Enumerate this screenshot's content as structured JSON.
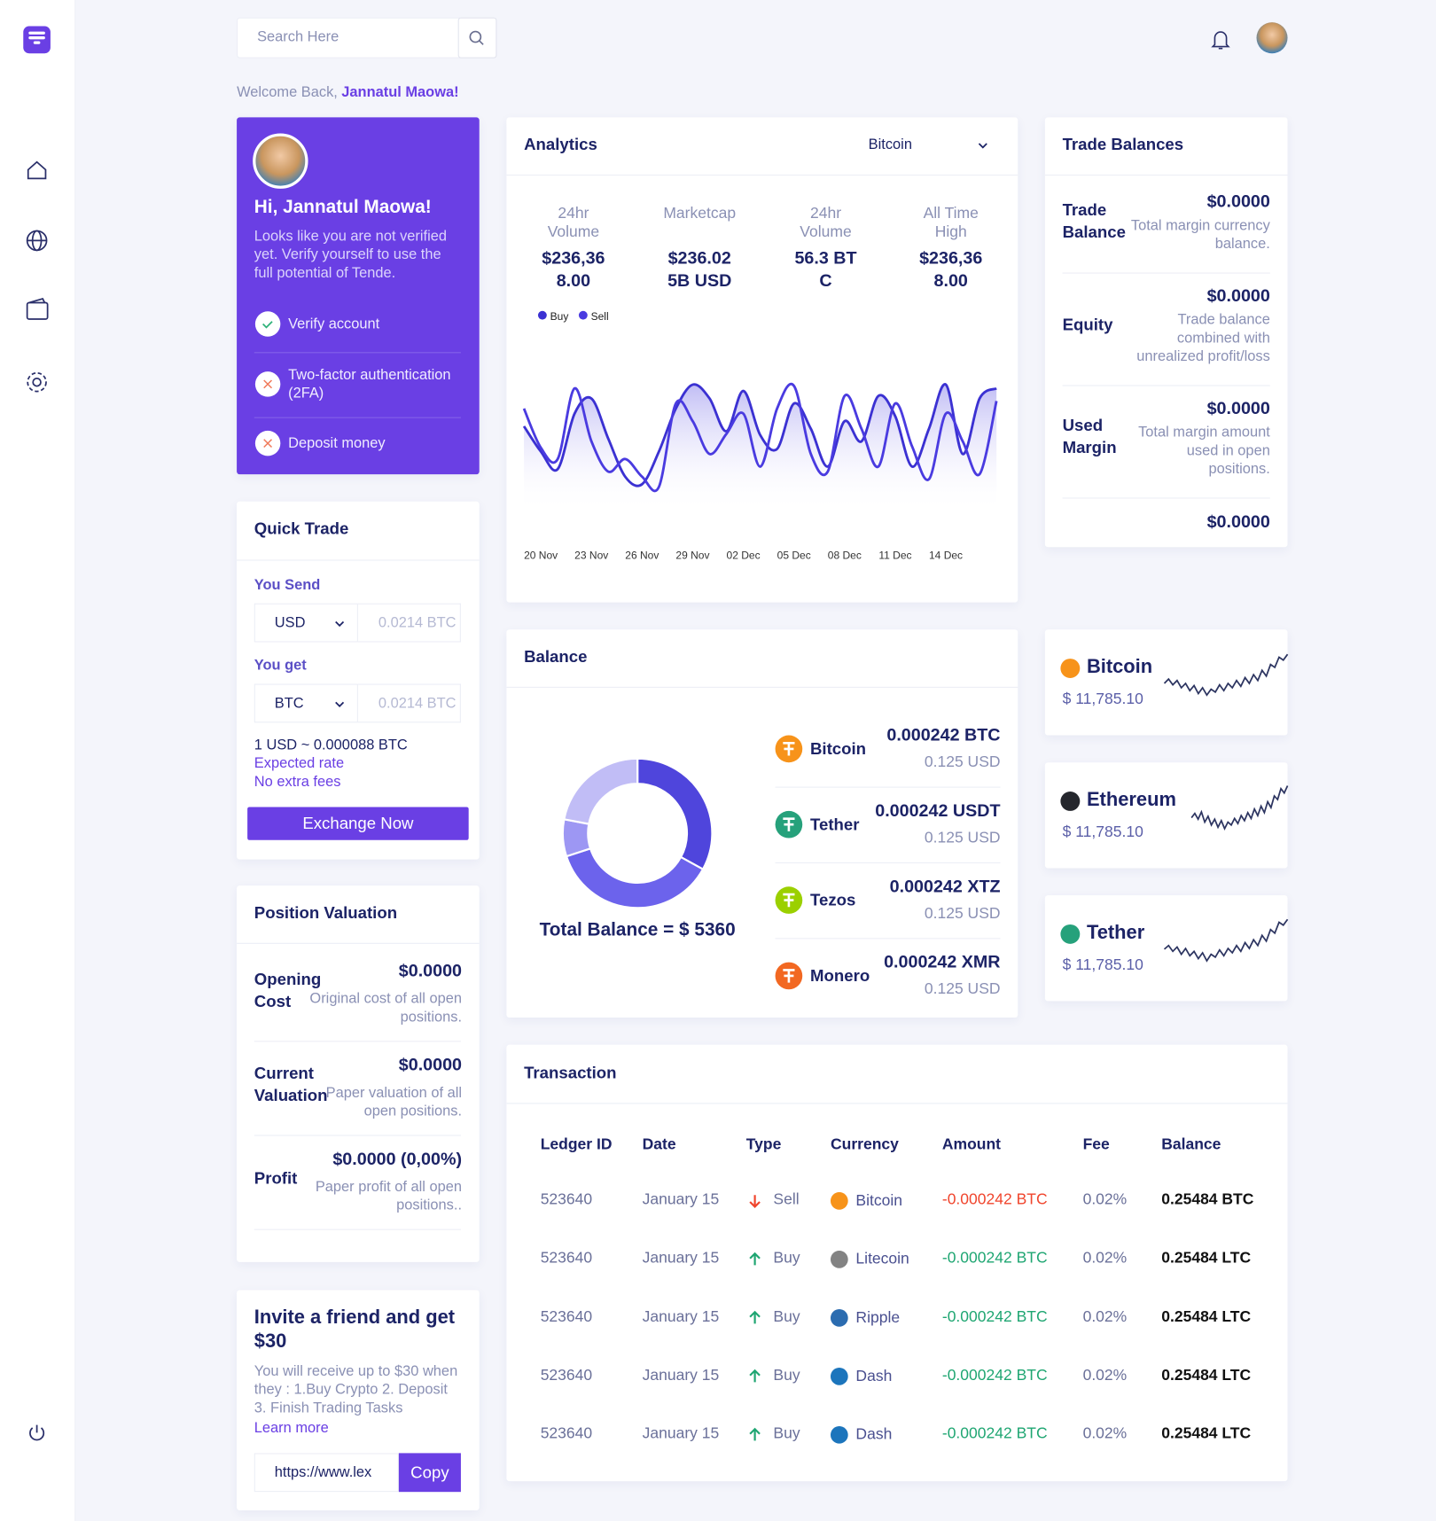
{
  "search_placeholder": "Search Here",
  "welcome": {
    "prefix": "Welcome Back,",
    "name": "Jannatul Maowa!"
  },
  "profile": {
    "greeting": "Hi, Jannatul Maowa!",
    "message": "Looks like you are not verified yet. Verify yourself to use the full potential of Tende.",
    "steps": [
      {
        "label": "Verify account",
        "done": true
      },
      {
        "label": "Two-factor authentication (2FA)",
        "done": false
      },
      {
        "label": "Deposit money",
        "done": false
      }
    ]
  },
  "quick_trade": {
    "title": "Quick Trade",
    "send_label": "You Send",
    "send_currency": "USD",
    "send_amount": "0.0214 BTC",
    "get_label": "You get",
    "get_currency": "BTC",
    "get_amount": "0.0214 BTC",
    "rate": "1 USD ~ 0.000088 BTC",
    "notes": [
      "Expected rate",
      "No extra fees"
    ],
    "button": "Exchange Now"
  },
  "position_valuation": {
    "title": "Position Valuation",
    "items": [
      {
        "label": "Opening Cost",
        "value": "$0.0000",
        "desc": "Original cost of all open positions."
      },
      {
        "label": "Current Valuation",
        "value": "$0.0000",
        "desc": "Paper valuation of all open positions."
      },
      {
        "label": "Profit",
        "value": "$0.0000 (0,00%)",
        "desc": "Paper profit of all open positions.."
      }
    ]
  },
  "invite": {
    "title": "Invite a friend and get $30",
    "text": "You will receive up to $30 when they : 1.Buy Crypto 2. Deposit 3. Finish Trading Tasks",
    "link": "Learn more",
    "url": "https://www.lex",
    "button": "Copy"
  },
  "analytics": {
    "title": "Analytics",
    "selector": "Bitcoin",
    "stats": [
      {
        "label": "24hr Volume",
        "value": "$236,368.00"
      },
      {
        "label": "Marketcap",
        "value": "$236.025B USD"
      },
      {
        "label": "24hr Volume",
        "value": "56.3 BTC"
      },
      {
        "label": "All Time High",
        "value": "$236,368.00"
      }
    ],
    "chart": {
      "type": "line",
      "ylim": [
        0,
        100
      ],
      "categories": [
        null,
        "20 Nov",
        null,
        null,
        "23 Nov",
        null,
        null,
        "26 Nov",
        null,
        null,
        "29 Nov",
        null,
        null,
        "02 Dec",
        null,
        null,
        "05 Dec",
        null,
        null,
        "08 Dec",
        null,
        null,
        "11 Dec",
        null,
        null,
        "14 Dec",
        null,
        null,
        null
      ],
      "series": [
        {
          "name": "Buy",
          "color": "#3b31d2",
          "values": [
            62,
            42,
            28,
            72,
            84,
            52,
            22,
            16,
            42,
            76,
            95,
            84,
            58,
            90,
            55,
            44,
            80,
            60,
            30,
            66,
            50,
            86,
            70,
            30,
            60,
            95,
            40,
            84,
            92
          ]
        },
        {
          "name": "Sell",
          "color": "#4a3be0",
          "values": [
            76,
            45,
            36,
            92,
            50,
            26,
            36,
            22,
            14,
            80,
            66,
            40,
            56,
            72,
            30,
            76,
            94,
            40,
            26,
            86,
            60,
            30,
            80,
            46,
            20,
            72,
            50,
            24,
            82
          ]
        }
      ]
    }
  },
  "balance": {
    "title": "Balance",
    "total": "Total Balance = $ 5360",
    "donut": {
      "type": "pie",
      "values": [
        33,
        37,
        8,
        22
      ],
      "colors": [
        "#4f45dc",
        "#6c63ec",
        "#9d97f3",
        "#c1bdf6"
      ]
    },
    "coins": [
      {
        "name": "Bitcoin",
        "amount": "0.000242 BTC",
        "usd": "0.125 USD",
        "color": "#f7931a"
      },
      {
        "name": "Tether",
        "amount": "0.000242 USDT",
        "usd": "0.125 USD",
        "color": "#26a17b"
      },
      {
        "name": "Tezos",
        "amount": "0.000242 XTZ",
        "usd": "0.125 USD",
        "color": "#9bd000"
      },
      {
        "name": "Monero",
        "amount": "0.000242 XMR",
        "usd": "0.125 USD",
        "color": "#f26822"
      }
    ]
  },
  "trade_balances": {
    "title": "Trade Balances",
    "items": [
      {
        "label": "Trade Balance",
        "value": "$0.0000",
        "desc": "Total margin currency balance."
      },
      {
        "label": "Equity",
        "value": "$0.0000",
        "desc": "Trade balance combined with unrealized profit/loss"
      },
      {
        "label": "Used Margin",
        "value": "$0.0000",
        "desc": "Total margin amount used in open positions."
      }
    ],
    "last_value": "$0.0000"
  },
  "tickers": [
    {
      "name": "Bitcoin",
      "price": "$ 11,785.10",
      "color": "#f7931a",
      "ylim": [
        0,
        80
      ],
      "values": [
        30,
        36,
        28,
        34,
        24,
        30,
        20,
        27,
        16,
        24,
        14,
        22,
        18,
        28,
        20,
        30,
        24,
        34,
        26,
        38,
        30,
        42,
        34,
        48,
        40,
        56,
        52,
        66,
        62,
        70
      ]
    },
    {
      "name": "Ethereum",
      "price": "$ 11,785.10",
      "color": "#25272d",
      "ylim": [
        0,
        80
      ],
      "values": [
        28,
        34,
        26,
        36,
        22,
        30,
        18,
        26,
        15,
        24,
        13,
        22,
        18,
        27,
        20,
        31,
        24,
        35,
        27,
        40,
        31,
        44,
        35,
        50,
        42,
        58,
        53,
        68,
        62,
        72
      ]
    },
    {
      "name": "Tether",
      "price": "$ 11,785.10",
      "color": "#26a17b",
      "ylim": [
        0,
        80
      ],
      "values": [
        30,
        35,
        27,
        33,
        23,
        31,
        21,
        27,
        17,
        25,
        14,
        23,
        19,
        29,
        21,
        31,
        25,
        35,
        27,
        39,
        31,
        43,
        35,
        49,
        41,
        57,
        52,
        67,
        63,
        71
      ]
    }
  ],
  "transactions": {
    "title": "Transaction",
    "columns": [
      "Ledger ID",
      "Date",
      "Type",
      "Currency",
      "Amount",
      "Fee",
      "Balance"
    ],
    "rows": [
      {
        "id": "523640",
        "date": "January 15",
        "type": "Sell",
        "arrow": "down",
        "currency": "Bitcoin",
        "icon_color": "#f7931a",
        "amount": "-0.000242 BTC",
        "color": "#f0452d",
        "fee": "0.02%",
        "balance": "0.25484 BTC"
      },
      {
        "id": "523640",
        "date": "January 15",
        "type": "Buy",
        "arrow": "up",
        "currency": "Litecoin",
        "icon_color": "#838383",
        "amount": "-0.000242 BTC",
        "color": "#1fa672",
        "fee": "0.02%",
        "balance": "0.25484 LTC"
      },
      {
        "id": "523640",
        "date": "January 15",
        "type": "Buy",
        "arrow": "up",
        "currency": "Ripple",
        "icon_color": "#2b6cb0",
        "amount": "-0.000242 BTC",
        "color": "#1fa672",
        "fee": "0.02%",
        "balance": "0.25484 LTC"
      },
      {
        "id": "523640",
        "date": "January 15",
        "type": "Buy",
        "arrow": "up",
        "currency": "Dash",
        "icon_color": "#1c75bc",
        "amount": "-0.000242 BTC",
        "color": "#1fa672",
        "fee": "0.02%",
        "balance": "0.25484 LTC"
      },
      {
        "id": "523640",
        "date": "January 15",
        "type": "Buy",
        "arrow": "up",
        "currency": "Dash",
        "icon_color": "#1c75bc",
        "amount": "-0.000242 BTC",
        "color": "#1fa672",
        "fee": "0.02%",
        "balance": "0.25484 LTC"
      }
    ]
  }
}
